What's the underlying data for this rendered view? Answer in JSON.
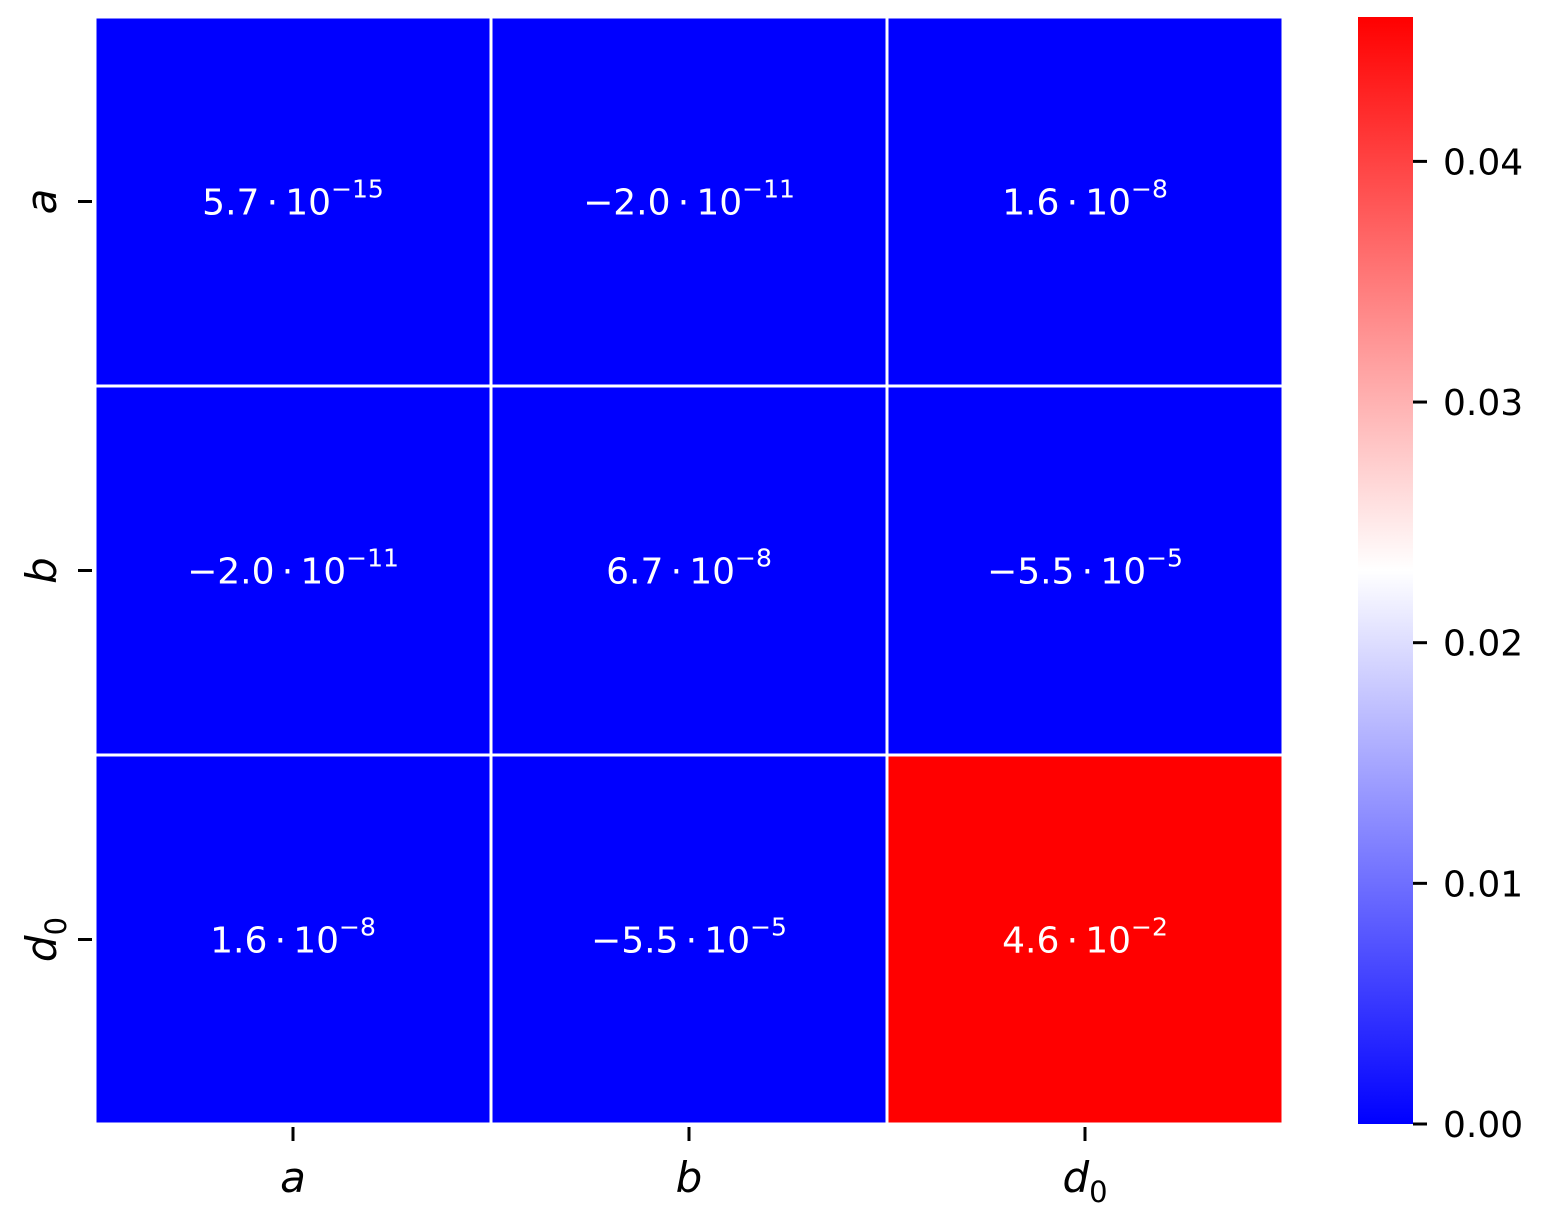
{
  "chart_data": {
    "type": "heatmap",
    "title": "",
    "xlabel": "",
    "ylabel": "",
    "rows": [
      {
        "base": "a",
        "sub": ""
      },
      {
        "base": "b",
        "sub": ""
      },
      {
        "base": "d",
        "sub": "0"
      }
    ],
    "cols": [
      {
        "base": "a",
        "sub": ""
      },
      {
        "base": "b",
        "sub": ""
      },
      {
        "base": "d",
        "sub": "0"
      }
    ],
    "values": [
      [
        5.7e-15,
        -2e-11,
        1.6e-08
      ],
      [
        -2e-11,
        6.7e-08,
        -5.5e-05
      ],
      [
        1.6e-08,
        -5.5e-05,
        0.046
      ]
    ],
    "annotations": [
      [
        {
          "mantissa": "5.7",
          "exponent": "−15"
        },
        {
          "mantissa": "−2.0",
          "exponent": "−11"
        },
        {
          "mantissa": "1.6",
          "exponent": "−8"
        }
      ],
      [
        {
          "mantissa": "−2.0",
          "exponent": "−11"
        },
        {
          "mantissa": "6.7",
          "exponent": "−8"
        },
        {
          "mantissa": "−5.5",
          "exponent": "−5"
        }
      ],
      [
        {
          "mantissa": "1.6",
          "exponent": "−8"
        },
        {
          "mantissa": "−5.5",
          "exponent": "−5"
        },
        {
          "mantissa": "4.6",
          "exponent": "−2"
        }
      ]
    ],
    "colormap": [
      "#0000ff",
      "#ffffff",
      "#ff0000"
    ],
    "colorbar": {
      "range": [
        0.0,
        0.046
      ],
      "ticks": [
        0.0,
        0.01,
        0.02,
        0.03,
        0.04
      ],
      "tick_labels": [
        "0.00",
        "0.01",
        "0.02",
        "0.03",
        "0.04"
      ],
      "placement": "right"
    },
    "cell_separator_color": "#ffffff",
    "grid": false,
    "legend": false
  }
}
